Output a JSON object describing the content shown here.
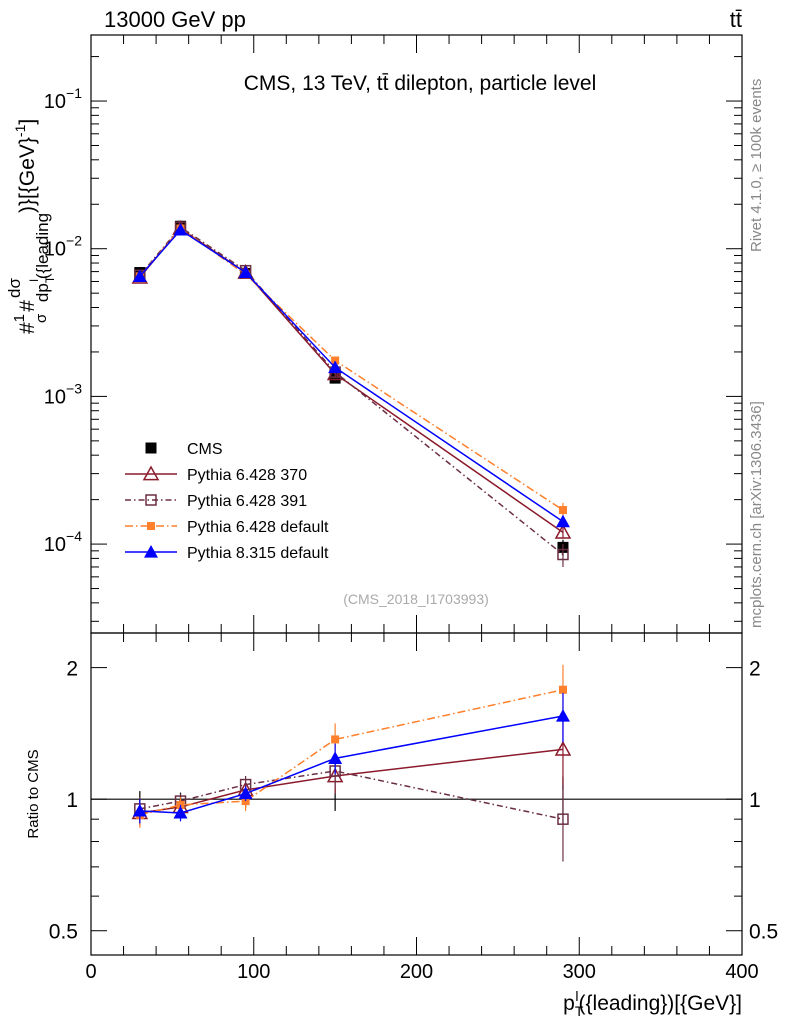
{
  "header": {
    "left": "13000 GeV pp",
    "right": "tt̄"
  },
  "side": {
    "top": "Rivet 4.1.0, ≥ 100k events",
    "bottom": "mcplots.cern.ch [arXiv:1306.3436]"
  },
  "chart_data": [
    {
      "type": "line",
      "title": "CMS, 13 TeV, tt̄ dilepton, particle level",
      "watermark": "(CMS_2018_I1703993)",
      "ylabel": "#1/σ#dσ/dp_T^l({leading})[{GeV}^-1]",
      "ylabel_parts": {
        "left": "#",
        "frac1_num": "1",
        "frac1_den": "σ",
        "mid": "#",
        "frac2_num": "dσ",
        "frac2_den": "dp",
        "frac2_den_sub": "T",
        "frac2_den_sup": "l",
        "frac2_den_tail": "({leading",
        "tail": ")}[{GeV}",
        "tail_sup": "-1",
        "tail_end": "]"
      },
      "yscale": "log",
      "ylim": [
        2.5e-05,
        0.28
      ],
      "xlim": [
        0,
        400
      ],
      "yticks": [
        {
          "value": 0.1,
          "base": "10",
          "exp": "−1"
        },
        {
          "value": 0.01,
          "base": "10",
          "exp": "−2"
        },
        {
          "value": 0.001,
          "base": "10",
          "exp": "−3"
        },
        {
          "value": 0.0001,
          "base": "10",
          "exp": "−4"
        }
      ],
      "x": [
        30,
        55,
        95,
        150,
        290
      ],
      "series": [
        {
          "name": "CMS",
          "marker": "square",
          "color": "#000000",
          "dash": "none",
          "values": [
            0.0069,
            0.0142,
            0.0068,
            0.00133,
            9.5e-05
          ],
          "err": [
            0.0003,
            0.0005,
            0.0003,
            8e-05,
            1.2e-05
          ]
        },
        {
          "name": "Pythia 6.428 370",
          "marker": "triangle-open",
          "color": "#8b1a2b",
          "dash": "none",
          "values": [
            0.0064,
            0.0137,
            0.0069,
            0.00142,
            0.00012
          ],
          "err": [
            0.0003,
            0.0005,
            0.0003,
            8e-05,
            1e-05
          ]
        },
        {
          "name": "Pythia 6.428 391",
          "marker": "square-open",
          "color": "#6b2f45",
          "dash": "6,3,1.5,3",
          "values": [
            0.0066,
            0.014,
            0.0071,
            0.00146,
            8.5e-05
          ],
          "err": [
            0.0003,
            0.0005,
            0.0003,
            8e-05,
            1.5e-05
          ]
        },
        {
          "name": "Pythia 6.428 default",
          "marker": "square-small",
          "color": "#ff7f2a",
          "dash": "8,3,1.5,3",
          "values": [
            0.0065,
            0.0137,
            0.0067,
            0.00175,
            0.00017
          ],
          "err": [
            0.0003,
            0.0005,
            0.0003,
            9e-05,
            2e-05
          ]
        },
        {
          "name": "Pythia 8.315 default",
          "marker": "triangle",
          "color": "#0000ff",
          "dash": "none",
          "values": [
            0.0065,
            0.0134,
            0.0069,
            0.00157,
            0.000142
          ],
          "err": [
            0.0003,
            0.0005,
            0.0003,
            8e-05,
            1.2e-05
          ]
        }
      ],
      "legend_position": "bottom-left"
    },
    {
      "type": "line",
      "title": "",
      "ylabel": "Ratio to CMS",
      "xlabel": "p_T^l({leading})[{GeV}]",
      "xlabel_parts": {
        "main": "p",
        "sub": "T",
        "sup": "l",
        "rest": "({leading})[{GeV}]"
      },
      "yscale": "log",
      "ylim": [
        0.44,
        2.4
      ],
      "xlim": [
        0,
        400
      ],
      "xticks": [
        "0",
        "100",
        "200",
        "300",
        "400"
      ],
      "yticks": [
        {
          "value": 0.5,
          "label": "0.5"
        },
        {
          "value": 1,
          "label": "1"
        },
        {
          "value": 2,
          "label": "2"
        }
      ],
      "x": [
        30,
        55,
        95,
        150,
        290
      ],
      "series": [
        {
          "name": "Pythia 6.428 370",
          "values": [
            0.93,
            0.96,
            1.05,
            1.13,
            1.3
          ],
          "err": [
            0.06,
            0.04,
            0.04,
            0.1,
            0.25
          ]
        },
        {
          "name": "Pythia 6.428 391",
          "values": [
            0.95,
            0.99,
            1.08,
            1.16,
            0.9
          ],
          "err": [
            0.06,
            0.04,
            0.05,
            0.1,
            0.18
          ]
        },
        {
          "name": "Pythia 6.428 default",
          "values": [
            0.92,
            0.97,
            0.99,
            1.37,
            1.78
          ],
          "err": [
            0.06,
            0.04,
            0.05,
            0.12,
            0.25
          ]
        },
        {
          "name": "Pythia 8.315 default",
          "values": [
            0.94,
            0.93,
            1.03,
            1.24,
            1.55
          ],
          "err": [
            0.06,
            0.04,
            0.04,
            0.1,
            0.2
          ]
        }
      ]
    }
  ]
}
